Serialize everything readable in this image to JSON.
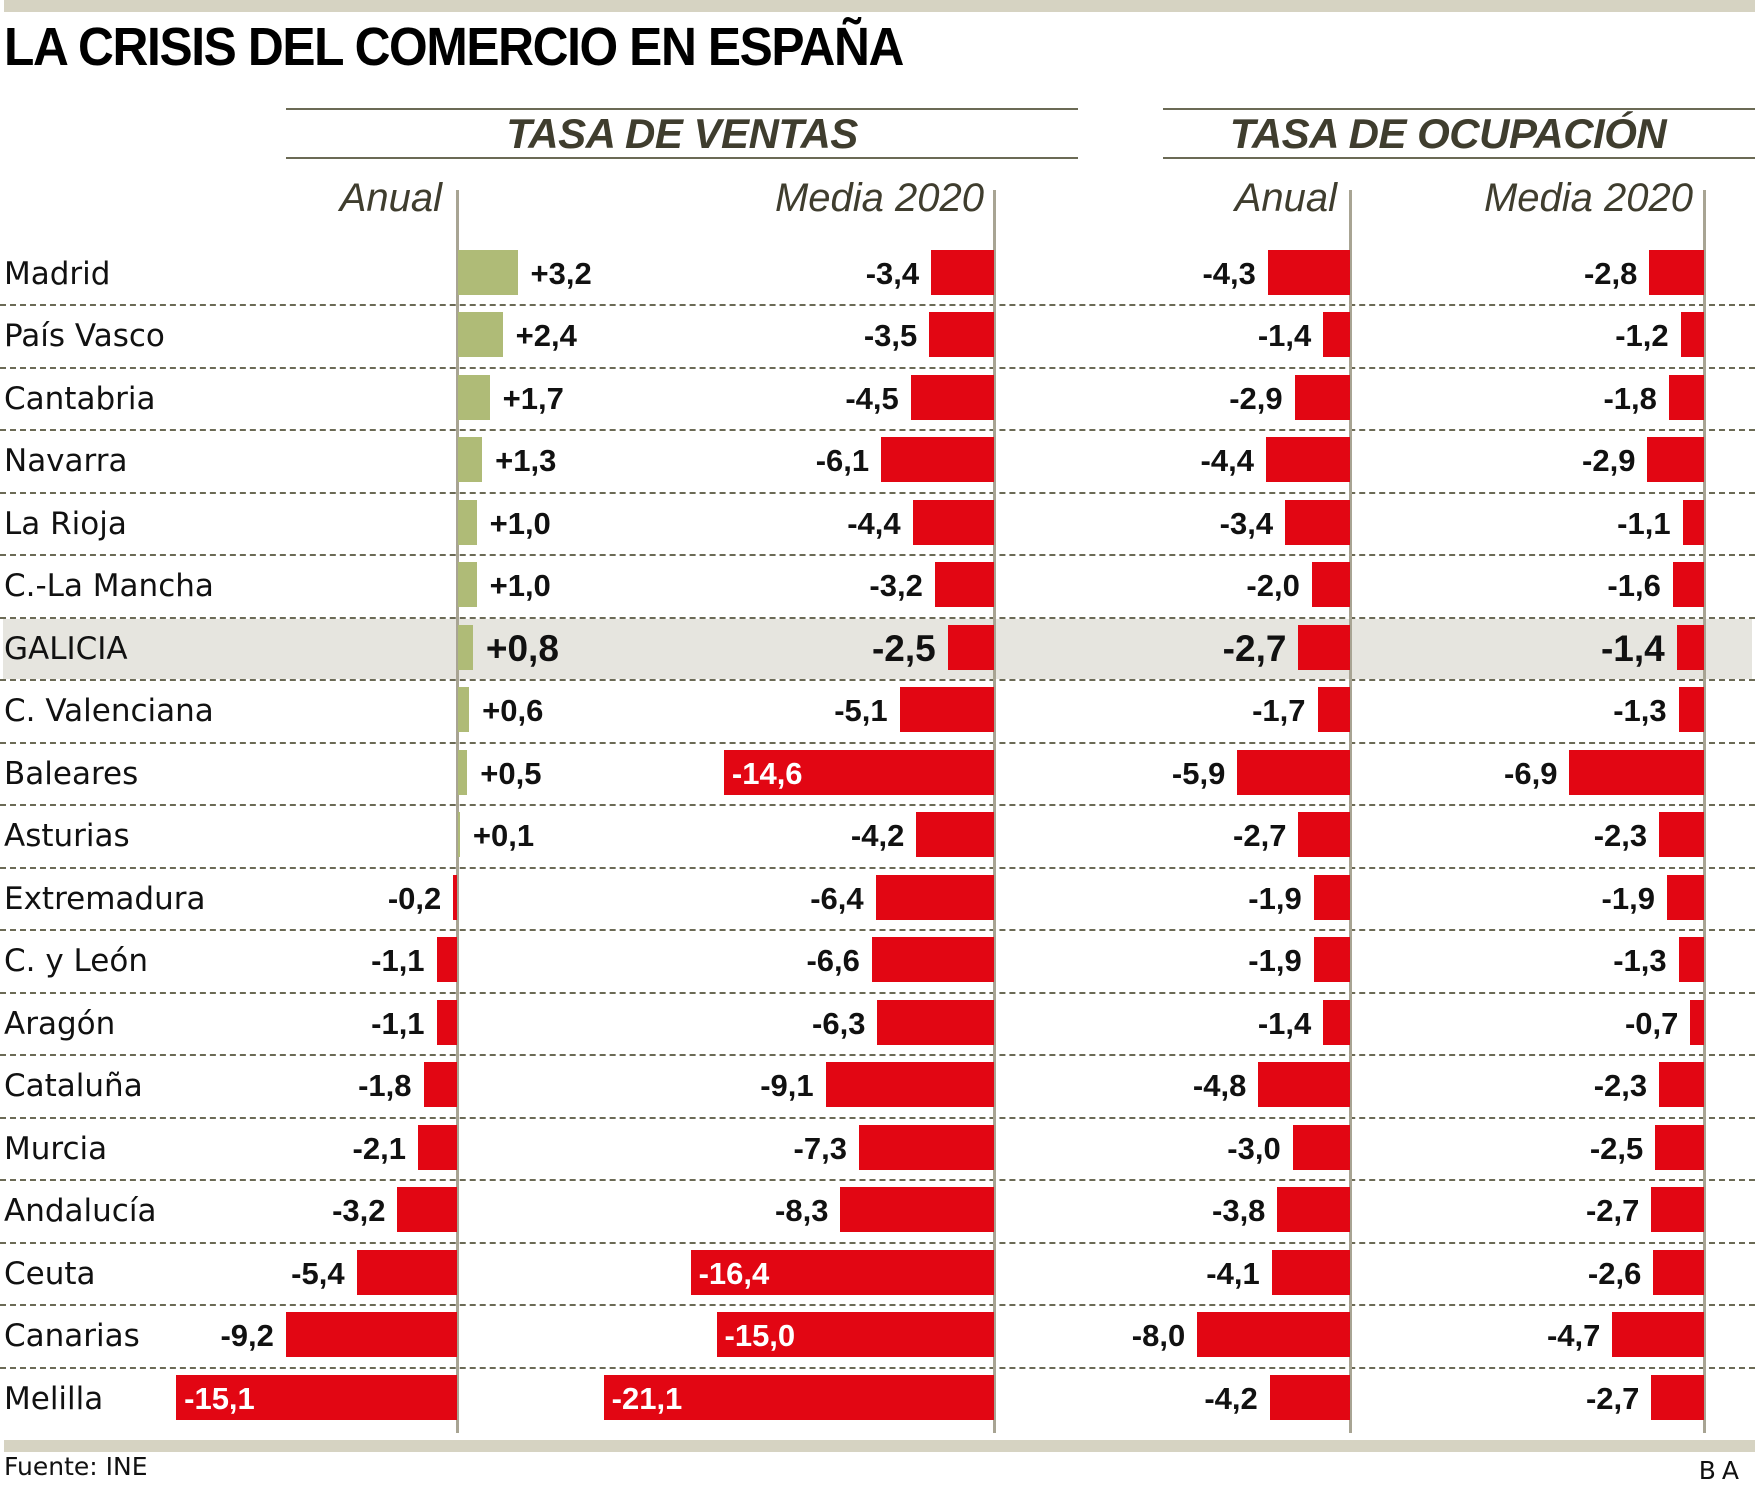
{
  "title": "LA CRISIS DEL COMERCIO EN ESPAÑA",
  "sections": [
    {
      "title": "TASA DE VENTAS",
      "subheads": [
        "Anual",
        "Media 2020"
      ]
    },
    {
      "title": "TASA DE OCUPACIÓN",
      "subheads": [
        "Anual",
        "Media 2020"
      ]
    }
  ],
  "source": "Fuente: INE",
  "credit": "BA",
  "colors": {
    "positive": "#afbb77",
    "negative": "#e20613",
    "highlight_row": "#e6e5df",
    "band": "#d6d3c2",
    "axis": "#a8a493",
    "header_text": "#3f3d2e"
  },
  "chart_data": {
    "type": "bar",
    "orientation": "horizontal",
    "title": "LA CRISIS DEL COMERCIO EN ESPAÑA",
    "highlight_category": "GALICIA",
    "categories": [
      "Madrid",
      "País Vasco",
      "Cantabria",
      "Navarra",
      "La Rioja",
      "C.-La Mancha",
      "GALICIA",
      "C. Valenciana",
      "Baleares",
      "Asturias",
      "Extremadura",
      "C. y León",
      "Aragón",
      "Cataluña",
      "Murcia",
      "Andalucía",
      "Ceuta",
      "Canarias",
      "Melilla"
    ],
    "series": [
      {
        "group": "TASA DE VENTAS",
        "name": "Anual",
        "values": [
          3.2,
          2.4,
          1.7,
          1.3,
          1.0,
          1.0,
          0.8,
          0.6,
          0.5,
          0.1,
          -0.2,
          -1.1,
          -1.1,
          -1.8,
          -2.1,
          -3.2,
          -5.4,
          -9.2,
          -15.1
        ],
        "labels": [
          "+3,2",
          "+2,4",
          "+1,7",
          "+1,3",
          "+1,0",
          "+1,0",
          "+0,8",
          "+0,6",
          "+0,5",
          "+0,1",
          "-0,2",
          "-1,1",
          "-1,1",
          "-1,8",
          "-2,1",
          "-3,2",
          "-5,4",
          "-9,2",
          "-15,1"
        ]
      },
      {
        "group": "TASA DE VENTAS",
        "name": "Media 2020",
        "values": [
          -3.4,
          -3.5,
          -4.5,
          -6.1,
          -4.4,
          -3.2,
          -2.5,
          -5.1,
          -14.6,
          -4.2,
          -6.4,
          -6.6,
          -6.3,
          -9.1,
          -7.3,
          -8.3,
          -16.4,
          -15.0,
          -21.1
        ],
        "labels": [
          "-3,4",
          "-3,5",
          "-4,5",
          "-6,1",
          "-4,4",
          "-3,2",
          "-2,5",
          "-5,1",
          "-14,6",
          "-4,2",
          "-6,4",
          "-6,6",
          "-6,3",
          "-9,1",
          "-7,3",
          "-8,3",
          "-16,4",
          "-15,0",
          "-21,1"
        ]
      },
      {
        "group": "TASA DE OCUPACIÓN",
        "name": "Anual",
        "values": [
          -4.3,
          -1.4,
          -2.9,
          -4.4,
          -3.4,
          -2.0,
          -2.7,
          -1.7,
          -5.9,
          -2.7,
          -1.9,
          -1.9,
          -1.4,
          -4.8,
          -3.0,
          -3.8,
          -4.1,
          -8.0,
          -4.2
        ],
        "labels": [
          "-4,3",
          "-1,4",
          "-2,9",
          "-4,4",
          "-3,4",
          "-2,0",
          "-2,7",
          "-1,7",
          "-5,9",
          "-2,7",
          "-1,9",
          "-1,9",
          "-1,4",
          "-4,8",
          "-3,0",
          "-3,8",
          "-4,1",
          "-8,0",
          "-4,2"
        ]
      },
      {
        "group": "TASA DE OCUPACIÓN",
        "name": "Media 2020",
        "values": [
          -2.8,
          -1.2,
          -1.8,
          -2.9,
          -1.1,
          -1.6,
          -1.4,
          -1.3,
          -6.9,
          -2.3,
          -1.9,
          -1.3,
          -0.7,
          -2.3,
          -2.5,
          -2.7,
          -2.6,
          -4.7,
          -2.7
        ],
        "labels": [
          "-2,8",
          "-1,2",
          "-1,8",
          "-2,9",
          "-1,1",
          "-1,6",
          "-1,4",
          "-1,3",
          "-6,9",
          "-2,3",
          "-1,9",
          "-1,3",
          "-0,7",
          "-2,3",
          "-2,5",
          "-2,7",
          "-2,6",
          "-4,7",
          "-2,7"
        ]
      }
    ],
    "xlabel": "",
    "ylabel": "",
    "units": "%",
    "grid": "dashed row separators",
    "legend": "none"
  }
}
